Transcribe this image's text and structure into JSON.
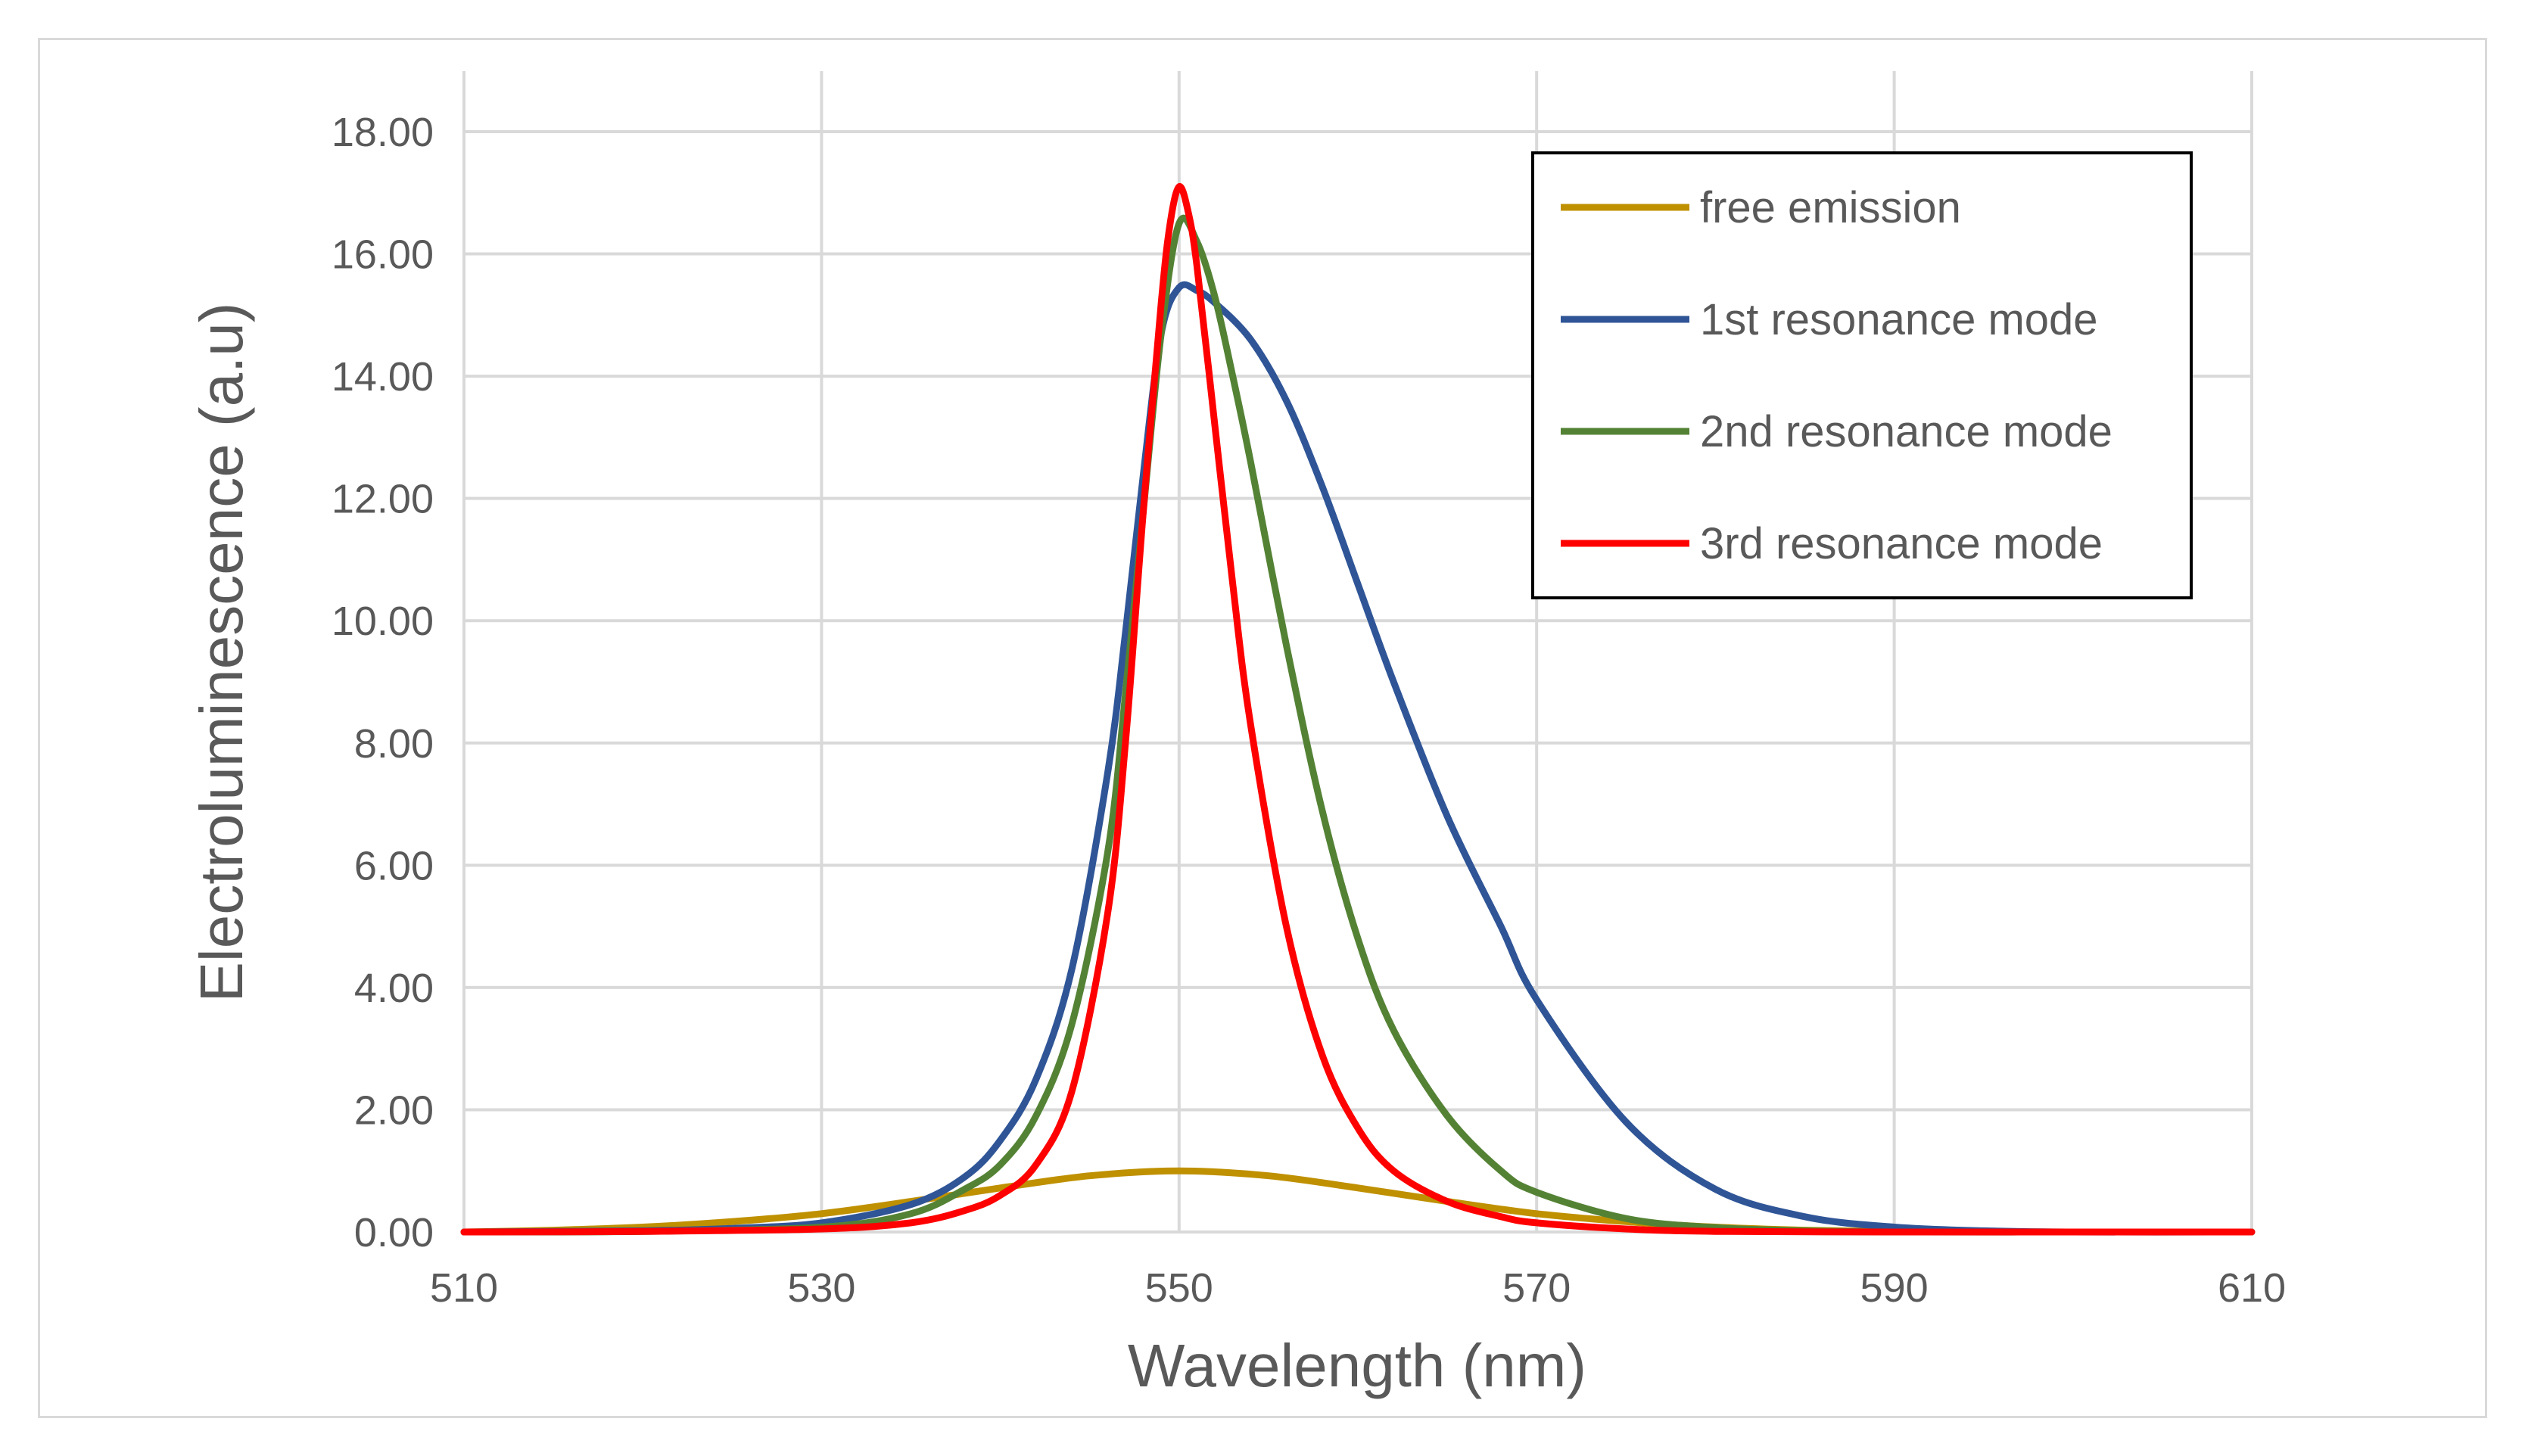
{
  "chart_data": {
    "type": "line",
    "title": "",
    "xlabel": "Wavelength (nm)",
    "ylabel": "Electroluminescence (a.u)",
    "xlim": [
      510,
      610
    ],
    "ylim": [
      0,
      18
    ],
    "x_ticks": [
      "510",
      "530",
      "550",
      "570",
      "590",
      "610"
    ],
    "y_ticks": [
      "0.00",
      "2.00",
      "4.00",
      "6.00",
      "8.00",
      "10.00",
      "12.00",
      "14.00",
      "16.00",
      "18.00"
    ],
    "grid": true,
    "legend_position": "top-right",
    "series": [
      {
        "name": "free emission",
        "color": "#bf9000",
        "x": [
          510,
          515,
          520,
          525,
          530,
          535,
          540,
          545,
          550,
          555,
          560,
          565,
          570,
          575,
          580,
          585,
          590,
          600,
          610
        ],
        "values": [
          0.0,
          0.03,
          0.08,
          0.17,
          0.3,
          0.5,
          0.72,
          0.92,
          1.0,
          0.92,
          0.72,
          0.5,
          0.3,
          0.17,
          0.08,
          0.03,
          0.01,
          0.0,
          0.0
        ]
      },
      {
        "name": "1st resonance mode",
        "color": "#2f5597",
        "x": [
          510,
          520,
          525,
          530,
          535,
          538,
          540,
          542,
          544,
          546,
          547,
          548,
          549,
          550,
          551,
          552,
          554,
          556,
          558,
          560,
          562,
          565,
          568,
          570,
          575,
          580,
          585,
          590,
          595,
          600,
          610
        ],
        "values": [
          0.0,
          0.02,
          0.06,
          0.15,
          0.45,
          0.9,
          1.5,
          2.5,
          4.3,
          7.5,
          9.8,
          12.4,
          14.7,
          15.45,
          15.4,
          15.2,
          14.6,
          13.6,
          12.2,
          10.6,
          9.0,
          6.8,
          5.0,
          3.8,
          1.8,
          0.7,
          0.25,
          0.08,
          0.02,
          0.0,
          0.0
        ]
      },
      {
        "name": "2nd resonance mode",
        "color": "#548235",
        "x": [
          510,
          520,
          530,
          535,
          538,
          540,
          542,
          544,
          546,
          547,
          548,
          549,
          550,
          551,
          552,
          553,
          554,
          556,
          558,
          560,
          562,
          565,
          568,
          570,
          575,
          580,
          585,
          590,
          600,
          610
        ],
        "values": [
          0.0,
          0.01,
          0.08,
          0.3,
          0.7,
          1.1,
          1.9,
          3.4,
          6.2,
          8.8,
          11.8,
          14.7,
          16.5,
          16.2,
          15.3,
          14.0,
          12.6,
          9.6,
          6.9,
          4.8,
          3.3,
          1.9,
          1.0,
          0.65,
          0.22,
          0.07,
          0.02,
          0.0,
          0.0,
          0.0
        ]
      },
      {
        "name": "3rd resonance mode",
        "color": "#ff0000",
        "x": [
          510,
          520,
          530,
          535,
          538,
          540,
          542,
          544,
          546,
          547,
          548,
          549,
          549.5,
          550,
          550.5,
          551,
          552,
          553,
          554,
          556,
          558,
          560,
          562,
          565,
          568,
          570,
          575,
          580,
          590,
          600,
          610
        ],
        "values": [
          0.0,
          0.01,
          0.05,
          0.15,
          0.35,
          0.6,
          1.1,
          2.3,
          5.2,
          8.0,
          11.8,
          15.2,
          16.5,
          17.1,
          16.7,
          15.8,
          13.2,
          10.6,
          8.3,
          5.0,
          2.9,
          1.7,
          1.0,
          0.5,
          0.25,
          0.15,
          0.05,
          0.01,
          0.0,
          0.0,
          0.0
        ]
      }
    ]
  }
}
